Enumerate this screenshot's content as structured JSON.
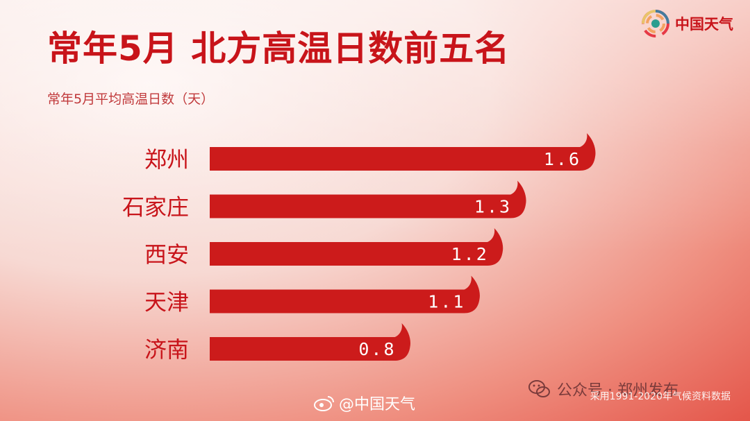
{
  "header": {
    "title": "常年5月  北方高温日数前五名",
    "subtitle": "常年5月平均高温日数（天）",
    "logo_text": "中国天气"
  },
  "chart_data": {
    "type": "bar",
    "orientation": "horizontal",
    "categories": [
      "郑州",
      "石家庄",
      "西安",
      "天津",
      "济南"
    ],
    "values": [
      1.6,
      1.3,
      1.2,
      1.1,
      0.8
    ],
    "value_labels": [
      "1.6",
      "1.3",
      "1.2",
      "1.1",
      "0.8"
    ],
    "xlim": [
      0,
      1.6
    ],
    "grid": false,
    "bar_color": "#cc1b1b"
  },
  "footer": {
    "weibo": "@中国天气",
    "wechat": "公众号 · 郑州发布",
    "source": "采用1991-2020年气候资料数据"
  },
  "colors": {
    "accent": "#c8141a",
    "label": "#c8141a"
  }
}
